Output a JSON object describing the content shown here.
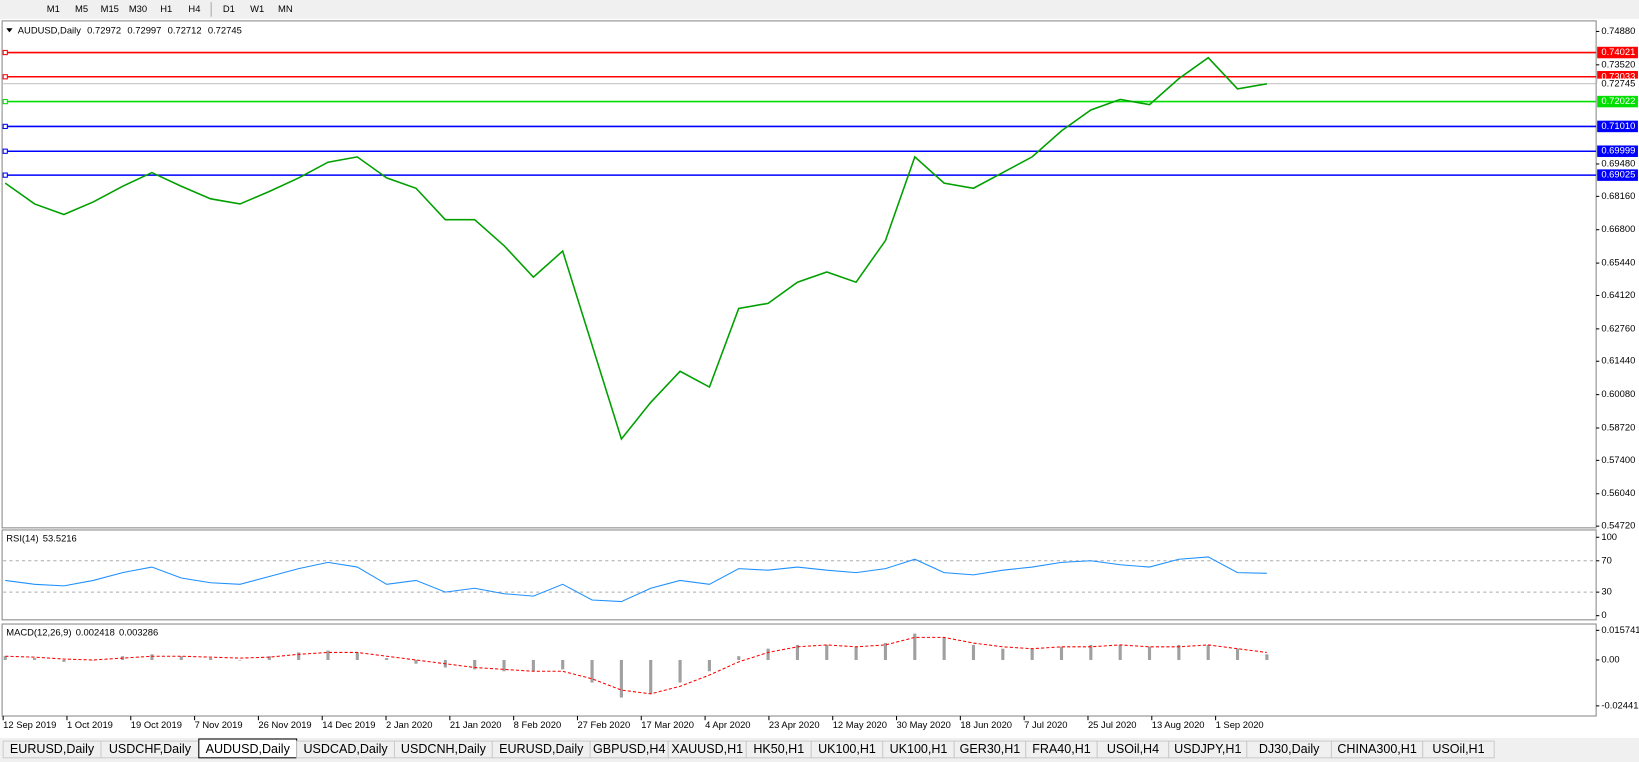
{
  "toolbar": {
    "timeframes": [
      "M1",
      "M5",
      "M15",
      "M30",
      "H1",
      "H4",
      "D1",
      "W1",
      "MN"
    ]
  },
  "chart_data": [
    {
      "type": "line",
      "title": "AUDUSD,Daily",
      "ohlc": [
        0.72972,
        0.72997,
        0.72712,
        0.72745
      ],
      "color": "#00a000",
      "values": [
        0.687,
        0.6785,
        0.6742,
        0.6793,
        0.6857,
        0.6913,
        0.6857,
        0.6806,
        0.6785,
        0.6836,
        0.6891,
        0.6955,
        0.6977,
        0.6891,
        0.6849,
        0.6721,
        0.6721,
        0.6615,
        0.6487,
        0.6593,
        0.621,
        0.5827,
        0.5976,
        0.6103,
        0.6039,
        0.6359,
        0.638,
        0.6466,
        0.6508,
        0.6466,
        0.6636,
        0.6977,
        0.687,
        0.6849,
        0.6913,
        0.6977,
        0.7083,
        0.7168,
        0.7211,
        0.719,
        0.7296,
        0.7381,
        0.7254,
        0.72745
      ],
      "ylim": [
        0.5465,
        0.7531
      ],
      "yticks": [
        {
          "value": 0.7488,
          "label": "0.74880"
        },
        {
          "value": 0.7352,
          "label": "0.73520"
        },
        {
          "value": 0.6948,
          "label": "0.69480"
        },
        {
          "value": 0.6816,
          "label": "0.68160"
        },
        {
          "value": 0.668,
          "label": "0.66800"
        },
        {
          "value": 0.6544,
          "label": "0.65440"
        },
        {
          "value": 0.6412,
          "label": "0.64120"
        },
        {
          "value": 0.6276,
          "label": "0.62760"
        },
        {
          "value": 0.6144,
          "label": "0.61440"
        },
        {
          "value": 0.6008,
          "label": "0.60080"
        },
        {
          "value": 0.5872,
          "label": "0.58720"
        },
        {
          "value": 0.574,
          "label": "0.57400"
        },
        {
          "value": 0.5604,
          "label": "0.56040"
        },
        {
          "value": 0.5472,
          "label": "0.54720"
        }
      ],
      "levels": [
        {
          "value": 0.74021,
          "color": "#ff0000"
        },
        {
          "value": 0.73033,
          "color": "#ff0000"
        },
        {
          "value": 0.72022,
          "color": "#00e000"
        },
        {
          "value": 0.7101,
          "label": "0.71010",
          "color": "#0000ff"
        },
        {
          "value": 0.69999,
          "color": "#0000ff"
        },
        {
          "value": 0.69025,
          "color": "#0000ff"
        }
      ],
      "time_axis": [
        "12 Sep 2019",
        "1 Oct 2019",
        "19 Oct 2019",
        "7 Nov 2019",
        "26 Nov 2019",
        "14 Dec 2019",
        "2 Jan 2020",
        "21 Jan 2020",
        "8 Feb 2020",
        "27 Feb 2020",
        "17 Mar 2020",
        "4 Apr 2020",
        "23 Apr 2020",
        "12 May 2020",
        "30 May 2020",
        "18 Jun 2020",
        "7 Jul 2020",
        "25 Jul 2020",
        "13 Aug 2020",
        "1 Sep 2020"
      ]
    },
    {
      "type": "line",
      "title": "RSI(14)",
      "current": 53.5216,
      "color": "#1e90ff",
      "values": [
        45,
        40,
        38,
        45,
        55,
        62,
        48,
        42,
        40,
        50,
        60,
        68,
        62,
        40,
        45,
        30,
        35,
        28,
        25,
        40,
        20,
        18,
        35,
        45,
        40,
        60,
        58,
        62,
        58,
        55,
        60,
        72,
        55,
        52,
        58,
        62,
        68,
        70,
        65,
        62,
        72,
        75,
        55,
        54
      ],
      "ylim": [
        0,
        100
      ],
      "yticks": [
        100,
        70,
        30,
        0
      ]
    },
    {
      "type": "macd",
      "title": "MACD(12,26,9)",
      "current": [
        0.002418,
        0.003286
      ],
      "color": "#a0a0a0",
      "signal_color": "#ff0000",
      "values": [
        0.002,
        0.001,
        -0.001,
        0,
        0.002,
        0.003,
        0.002,
        0.001,
        0,
        0.002,
        0.004,
        0.005,
        0.004,
        0.001,
        -0.002,
        -0.004,
        -0.005,
        -0.006,
        -0.006,
        -0.005,
        -0.012,
        -0.02,
        -0.018,
        -0.012,
        -0.006,
        0.002,
        0.006,
        0.008,
        0.008,
        0.007,
        0.009,
        0.014,
        0.012,
        0.008,
        0.006,
        0.006,
        0.007,
        0.008,
        0.008,
        0.007,
        0.008,
        0.008,
        0.006,
        0.003
      ],
      "signal": [
        0.002,
        0.0015,
        0.0005,
        0,
        0.001,
        0.002,
        0.002,
        0.0015,
        0.001,
        0.0015,
        0.003,
        0.004,
        0.004,
        0.002,
        0,
        -0.002,
        -0.004,
        -0.005,
        -0.006,
        -0.006,
        -0.01,
        -0.016,
        -0.018,
        -0.014,
        -0.008,
        -0.001,
        0.004,
        0.007,
        0.008,
        0.007,
        0.008,
        0.012,
        0.012,
        0.009,
        0.007,
        0.006,
        0.007,
        0.007,
        0.008,
        0.007,
        0.007,
        0.008,
        0.006,
        0.004
      ],
      "ylim": [
        -0.0298,
        0.0191
      ],
      "yticks": [
        0.015741,
        {
          "value": 0,
          "label": "0.00"
        },
        -0.024412
      ]
    }
  ],
  "tabs": [
    "EURUSD,Daily",
    "USDCHF,Daily",
    "AUDUSD,Daily",
    "USDCAD,Daily",
    "USDCNH,Daily",
    "EURUSD,Daily",
    "GBPUSD,H4",
    "XAUUSD,H1",
    "HK50,H1",
    "UK100,H1",
    "UK100,H1",
    "GER30,H1",
    "FRA40,H1",
    "USOil,H4",
    "USDJPY,H1",
    "DJ30,Daily",
    "CHINA300,H1",
    "USOil,H1"
  ],
  "active_tab": 2
}
